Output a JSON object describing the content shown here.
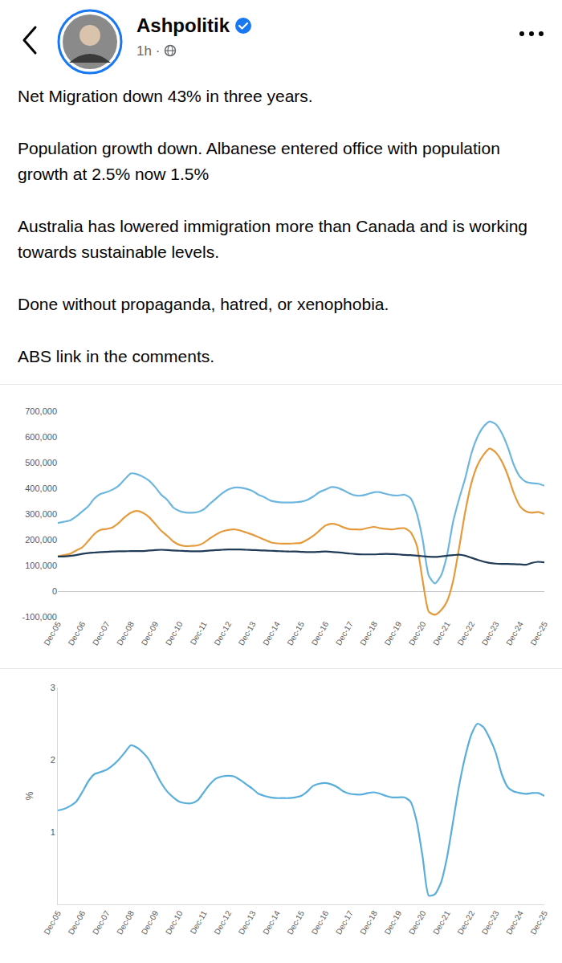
{
  "post": {
    "author": "Ashpolitik",
    "meta": "1h ·",
    "paragraphs": [
      "Net Migration down 43% in three years.",
      "Population growth down. Albanese entered office with population growth at 2.5% now 1.5%",
      "Australia has lowered immigration more than Canada and is working towards sustainable levels.",
      "Done without propaganda, hatred, or xenophobia.",
      "ABS link in the comments."
    ]
  },
  "chart_data": [
    {
      "type": "line",
      "categories": [
        "Dec-05",
        null,
        null,
        null,
        "Dec-06",
        null,
        null,
        null,
        "Dec-07",
        null,
        null,
        null,
        "Dec-08",
        null,
        null,
        null,
        "Dec-09",
        null,
        null,
        null,
        "Dec-10",
        null,
        null,
        null,
        "Dec-11",
        null,
        null,
        null,
        "Dec-12",
        null,
        null,
        null,
        "Dec-13",
        null,
        null,
        null,
        "Dec-14",
        null,
        null,
        null,
        "Dec-15",
        null,
        null,
        null,
        "Dec-16",
        null,
        null,
        null,
        "Dec-17",
        null,
        null,
        null,
        "Dec-18",
        null,
        null,
        null,
        "Dec-19",
        null,
        null,
        null,
        "Dec-20",
        null,
        null,
        null,
        "Dec-21",
        null,
        null,
        null,
        "Dec-22",
        null,
        null,
        null,
        "Dec-23",
        null,
        null,
        null,
        "Dec-24",
        null,
        null,
        null,
        "Dec-25"
      ],
      "series": [
        {
          "color": "#6cb6df",
          "values": [
            265000,
            270000,
            275000,
            290000,
            310000,
            330000,
            360000,
            378000,
            385000,
            395000,
            410000,
            435000,
            458000,
            455000,
            445000,
            430000,
            405000,
            375000,
            355000,
            325000,
            312000,
            306000,
            305000,
            308000,
            318000,
            340000,
            360000,
            380000,
            395000,
            403000,
            403000,
            398000,
            390000,
            375000,
            365000,
            352000,
            347000,
            345000,
            345000,
            346000,
            348000,
            355000,
            368000,
            385000,
            395000,
            405000,
            402000,
            392000,
            380000,
            372000,
            372000,
            378000,
            385000,
            385000,
            378000,
            373000,
            372000,
            375000,
            362000,
            305000,
            200000,
            60000,
            30000,
            60000,
            140000,
            270000,
            360000,
            440000,
            535000,
            600000,
            640000,
            660000,
            650000,
            615000,
            560000,
            490000,
            445000,
            425000,
            420000,
            418000,
            410000
          ]
        },
        {
          "color": "#e59a3c",
          "values": [
            135000,
            140000,
            145000,
            158000,
            170000,
            195000,
            222000,
            238000,
            242000,
            248000,
            265000,
            288000,
            305000,
            312000,
            305000,
            288000,
            262000,
            235000,
            215000,
            193000,
            180000,
            175000,
            176000,
            178000,
            188000,
            205000,
            220000,
            232000,
            238000,
            240000,
            236000,
            228000,
            220000,
            210000,
            200000,
            190000,
            186000,
            185000,
            185000,
            186000,
            188000,
            200000,
            215000,
            235000,
            255000,
            262000,
            258000,
            248000,
            241000,
            240000,
            240000,
            246000,
            250000,
            245000,
            242000,
            240000,
            244000,
            245000,
            230000,
            180000,
            40000,
            -80000,
            -92000,
            -75000,
            -40000,
            40000,
            170000,
            310000,
            420000,
            490000,
            530000,
            555000,
            540000,
            505000,
            450000,
            380000,
            330000,
            310000,
            305000,
            308000,
            300000
          ]
        },
        {
          "color": "#1f3b57",
          "values": [
            135000,
            135000,
            137000,
            140000,
            145000,
            148000,
            150000,
            152000,
            153000,
            154000,
            155000,
            155000,
            156000,
            156000,
            156000,
            158000,
            160000,
            161000,
            160000,
            158000,
            157000,
            156000,
            155000,
            155000,
            156000,
            158000,
            160000,
            161000,
            162000,
            162000,
            162000,
            161000,
            160000,
            159000,
            158000,
            157000,
            156000,
            155000,
            154000,
            154000,
            153000,
            152000,
            152000,
            153000,
            154000,
            153000,
            151000,
            149000,
            146000,
            144000,
            143000,
            143000,
            143000,
            144000,
            145000,
            144000,
            143000,
            141000,
            140000,
            138000,
            136000,
            134000,
            133000,
            135000,
            138000,
            140000,
            142000,
            138000,
            130000,
            122000,
            115000,
            110000,
            107000,
            106000,
            106000,
            105000,
            104000,
            103000,
            110000,
            114000,
            112000
          ]
        }
      ],
      "ylim": [
        -100000,
        700000
      ],
      "yticks": [
        {
          "value": 700000,
          "label": "700,000"
        },
        {
          "value": 600000,
          "label": "600,000"
        },
        {
          "value": 500000,
          "label": "500,000"
        },
        {
          "value": 400000,
          "label": "400,000"
        },
        {
          "value": 300000,
          "label": "300,000"
        },
        {
          "value": 200000,
          "label": "200,000"
        },
        {
          "value": 100000,
          "label": "100,000"
        },
        0,
        {
          "value": -100000,
          "label": "-100,000"
        }
      ],
      "grid": false
    },
    {
      "type": "line",
      "y_label": "%",
      "categories": [
        "Dec-05",
        null,
        null,
        null,
        "Dec-06",
        null,
        null,
        null,
        "Dec-07",
        null,
        null,
        null,
        "Dec-08",
        null,
        null,
        null,
        "Dec-09",
        null,
        null,
        null,
        "Dec-10",
        null,
        null,
        null,
        "Dec-11",
        null,
        null,
        null,
        "Dec-12",
        null,
        null,
        null,
        "Dec-13",
        null,
        null,
        null,
        "Dec-14",
        null,
        null,
        null,
        "Dec-15",
        null,
        null,
        null,
        "Dec-16",
        null,
        null,
        null,
        "Dec-17",
        null,
        null,
        null,
        "Dec-18",
        null,
        null,
        null,
        "Dec-19",
        null,
        null,
        null,
        "Dec-20",
        null,
        null,
        null,
        "Dec-21",
        null,
        null,
        null,
        "Dec-22",
        null,
        null,
        null,
        "Dec-23",
        null,
        null,
        null,
        "Dec-24",
        null,
        null,
        null,
        "Dec-25"
      ],
      "series": [
        {
          "color": "#5aaedc",
          "values": [
            1.3,
            1.32,
            1.36,
            1.42,
            1.55,
            1.7,
            1.8,
            1.83,
            1.86,
            1.92,
            2.0,
            2.1,
            2.2,
            2.17,
            2.1,
            2.0,
            1.84,
            1.68,
            1.56,
            1.48,
            1.42,
            1.4,
            1.4,
            1.44,
            1.55,
            1.66,
            1.74,
            1.77,
            1.78,
            1.77,
            1.72,
            1.66,
            1.6,
            1.53,
            1.5,
            1.48,
            1.47,
            1.47,
            1.47,
            1.48,
            1.5,
            1.56,
            1.64,
            1.67,
            1.68,
            1.66,
            1.62,
            1.56,
            1.53,
            1.52,
            1.52,
            1.54,
            1.55,
            1.53,
            1.5,
            1.48,
            1.48,
            1.48,
            1.42,
            1.15,
            0.65,
            0.12,
            0.14,
            0.3,
            0.65,
            1.15,
            1.65,
            2.05,
            2.35,
            2.5,
            2.45,
            2.3,
            2.1,
            1.8,
            1.62,
            1.56,
            1.54,
            1.53,
            1.54,
            1.54,
            1.5
          ]
        }
      ],
      "ylim": [
        0,
        3
      ],
      "yticks": [
        1,
        2,
        3
      ],
      "grid": false
    }
  ]
}
